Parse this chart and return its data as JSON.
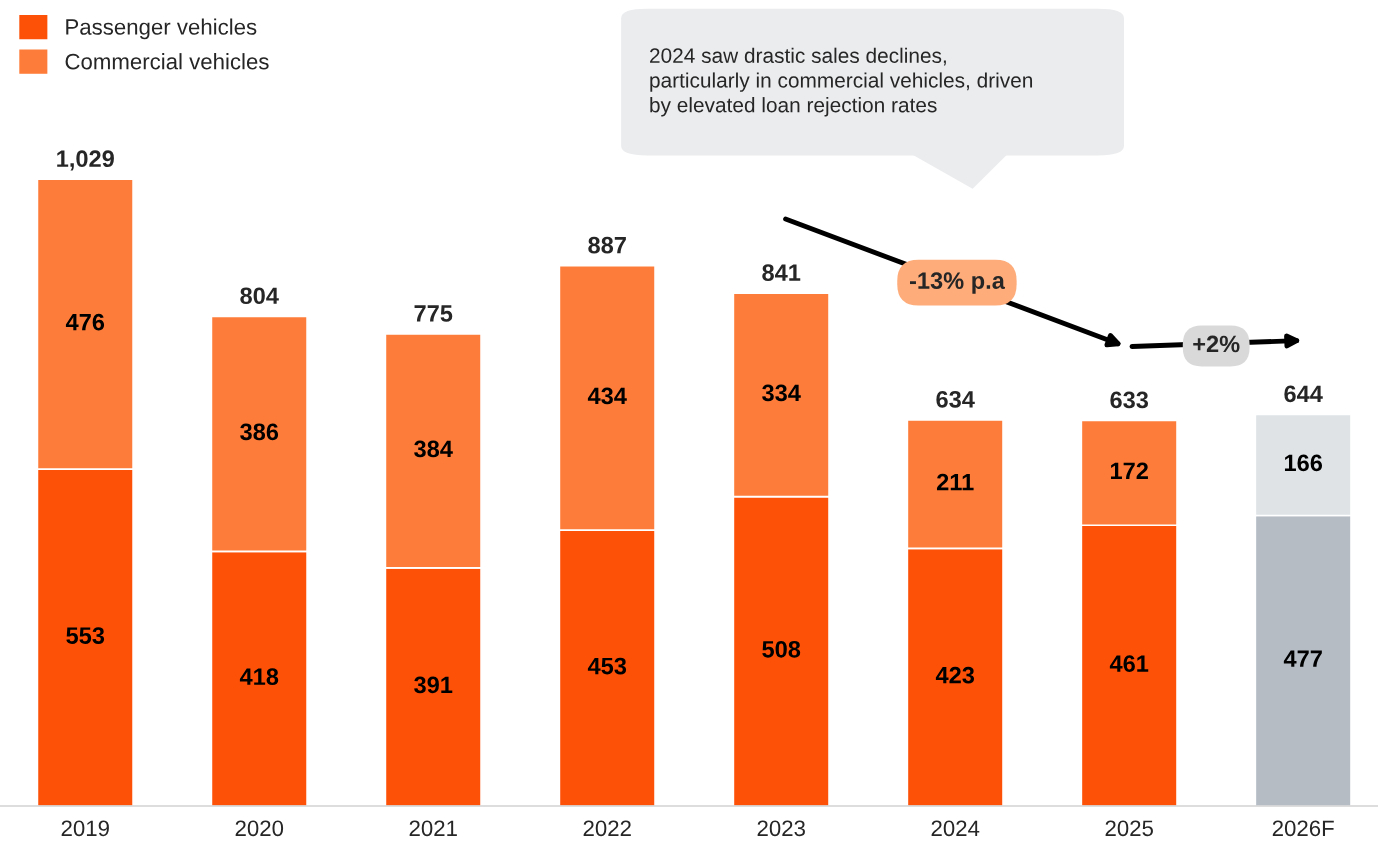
{
  "chart_data": {
    "type": "bar",
    "stacked": true,
    "data_labels": true,
    "legend": "top left",
    "grid": false,
    "categories": [
      "2019",
      "2020",
      "2021",
      "2022",
      "2023",
      "2024",
      "2025",
      "2026F"
    ],
    "series": [
      {
        "name": "Passenger vehicles",
        "color": "#fd5108",
        "colors": [
          "#fd5108",
          "#fd5108",
          "#fd5108",
          "#fd5108",
          "#fd5108",
          "#fd5108",
          "#fd5108",
          "#b5bcc4"
        ],
        "values": [
          553,
          418,
          391,
          453,
          508,
          423,
          461,
          477
        ]
      },
      {
        "name": "Commercial vehicles",
        "color": "#fe7c39",
        "colors": [
          "#fe7c39",
          "#fe7c39",
          "#fe7c39",
          "#fe7c39",
          "#fe7c39",
          "#fe7c39",
          "#fe7c39",
          "#dfe3e6"
        ],
        "values": [
          476,
          386,
          384,
          434,
          334,
          211,
          172,
          166
        ]
      }
    ],
    "totals": [
      "1,029",
      "804",
      "775",
      "887",
      "841",
      "634",
      "633",
      "644"
    ],
    "annotations": [
      "2024 saw drastic sales declines,\nparticularly in commercial vehicles, driven\nby elevated loan rejection rates",
      "-13% p.a",
      "+2%"
    ]
  }
}
